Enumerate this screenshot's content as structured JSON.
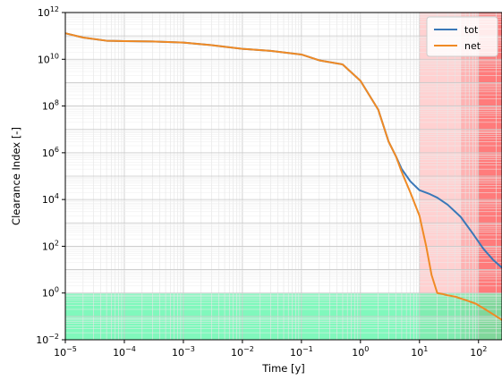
{
  "chart_data": {
    "type": "line",
    "title": "",
    "xlabel": "Time [y]",
    "ylabel": "Clearance Index [-]",
    "x_scale": "log",
    "y_scale": "log",
    "xlim": [
      1e-05,
      250
    ],
    "ylim": [
      0.01,
      1000000000000
    ],
    "x_ticks": [
      {
        "value": 1e-05,
        "base": "10",
        "exp": "−5"
      },
      {
        "value": 0.0001,
        "base": "10",
        "exp": "−4"
      },
      {
        "value": 0.001,
        "base": "10",
        "exp": "−3"
      },
      {
        "value": 0.01,
        "base": "10",
        "exp": "−2"
      },
      {
        "value": 0.1,
        "base": "10",
        "exp": "−1"
      },
      {
        "value": 1,
        "base": "10",
        "exp": "0"
      },
      {
        "value": 10,
        "base": "10",
        "exp": "1"
      },
      {
        "value": 100,
        "base": "10",
        "exp": "2"
      }
    ],
    "y_ticks": [
      {
        "value": 0.01,
        "base": "10",
        "exp": "−2"
      },
      {
        "value": 1,
        "base": "10",
        "exp": "0"
      },
      {
        "value": 100,
        "base": "10",
        "exp": "2"
      },
      {
        "value": 10000,
        "base": "10",
        "exp": "4"
      },
      {
        "value": 1000000,
        "base": "10",
        "exp": "6"
      },
      {
        "value": 100000000,
        "base": "10",
        "exp": "8"
      },
      {
        "value": 10000000000,
        "base": "10",
        "exp": "10"
      },
      {
        "value": 1000000000000,
        "base": "10",
        "exp": "12"
      }
    ],
    "grid": true,
    "legend_position": "top-right",
    "series": [
      {
        "name": "tot",
        "color": "#3a78b8",
        "x": [
          1e-05,
          2e-05,
          5e-05,
          0.0001,
          0.0003,
          0.001,
          0.003,
          0.01,
          0.03,
          0.1,
          0.2,
          0.5,
          1,
          2,
          3,
          4,
          5,
          7,
          10,
          15,
          20,
          30,
          50,
          80,
          120,
          180,
          250
        ],
        "y": [
          130000000000.0,
          85000000000.0,
          62000000000.0,
          60000000000.0,
          58000000000.0,
          52000000000.0,
          40000000000.0,
          28000000000.0,
          23000000000.0,
          16000000000.0,
          9000000000.0,
          6000000000.0,
          1200000000.0,
          70000000.0,
          3000000.0,
          700000.0,
          200000.0,
          60000.0,
          25000.0,
          17000.0,
          12000.0,
          6000,
          1800,
          350,
          80,
          25,
          12
        ]
      },
      {
        "name": "net",
        "color": "#f08a24",
        "x": [
          1e-05,
          2e-05,
          5e-05,
          0.0001,
          0.0003,
          0.001,
          0.003,
          0.01,
          0.03,
          0.1,
          0.2,
          0.5,
          1,
          2,
          3,
          4,
          5,
          7,
          10,
          13,
          16,
          20,
          25,
          30,
          40,
          60,
          90,
          130,
          180,
          250
        ],
        "y": [
          130000000000.0,
          85000000000.0,
          62000000000.0,
          60000000000.0,
          58000000000.0,
          52000000000.0,
          40000000000.0,
          28000000000.0,
          23000000000.0,
          16000000000.0,
          9000000000.0,
          6000000000.0,
          1200000000.0,
          70000000.0,
          3000000.0,
          700000.0,
          150000.0,
          20000.0,
          2000,
          100,
          6,
          1.0,
          0.9,
          0.8,
          0.7,
          0.5,
          0.35,
          0.2,
          0.12,
          0.07
        ]
      }
    ],
    "regions": [
      {
        "kind": "x-band",
        "x_from": 10,
        "x_to": 50,
        "color": "#ff9a9a",
        "opacity": 0.45
      },
      {
        "kind": "x-band",
        "x_from": 50,
        "x_to": 100,
        "color": "#ff8080",
        "opacity": 0.6
      },
      {
        "kind": "x-band",
        "x_from": 100,
        "x_to": 250,
        "color": "#ff6464",
        "opacity": 0.85
      },
      {
        "kind": "y-band",
        "y_from": 0.01,
        "y_to": 1,
        "color": "#55f5a6",
        "opacity": 0.75
      }
    ]
  }
}
